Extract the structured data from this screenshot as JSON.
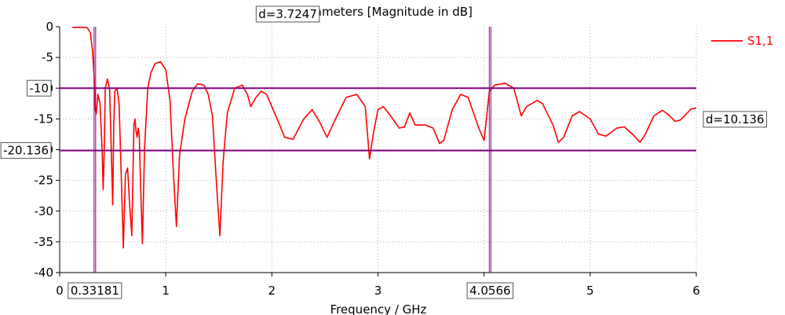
{
  "chart_data": {
    "type": "line",
    "title": "S-Parameters [Magnitude in dB]",
    "xlabel": "Frequency / GHz",
    "ylabel": "",
    "xlim": [
      0,
      6
    ],
    "ylim": [
      -40,
      0
    ],
    "xticks": [
      "0",
      "1",
      "2",
      "3",
      "4",
      "5",
      "6"
    ],
    "yticks": [
      "0",
      "-5",
      "-10",
      "-15",
      "-20",
      "-25",
      "-30",
      "-35",
      "-40"
    ],
    "grid": true,
    "legend_position": "top-right",
    "series": [
      {
        "name": "S1,1",
        "color": "#ff0000",
        "points": [
          [
            0.12,
            -0.1
          ],
          [
            0.2,
            -0.1
          ],
          [
            0.26,
            -0.15
          ],
          [
            0.29,
            -1.0
          ],
          [
            0.31,
            -4.0
          ],
          [
            0.325,
            -8.0
          ],
          [
            0.335,
            -13.5
          ],
          [
            0.345,
            -14.2
          ],
          [
            0.36,
            -11.0
          ],
          [
            0.38,
            -12.5
          ],
          [
            0.4,
            -20.0
          ],
          [
            0.41,
            -26.5
          ],
          [
            0.42,
            -20.0
          ],
          [
            0.43,
            -10.0
          ],
          [
            0.45,
            -8.5
          ],
          [
            0.47,
            -10.0
          ],
          [
            0.48,
            -16.0
          ],
          [
            0.5,
            -29.0
          ],
          [
            0.51,
            -16.0
          ],
          [
            0.52,
            -10.5
          ],
          [
            0.54,
            -10.0
          ],
          [
            0.56,
            -12.5
          ],
          [
            0.58,
            -24.0
          ],
          [
            0.6,
            -36.0
          ],
          [
            0.62,
            -24.0
          ],
          [
            0.64,
            -23.0
          ],
          [
            0.66,
            -29.0
          ],
          [
            0.68,
            -34.0
          ],
          [
            0.7,
            -16.0
          ],
          [
            0.71,
            -15.0
          ],
          [
            0.72,
            -17.0
          ],
          [
            0.73,
            -18.0
          ],
          [
            0.74,
            -16.5
          ],
          [
            0.75,
            -17.5
          ],
          [
            0.76,
            -24.0
          ],
          [
            0.78,
            -35.3
          ],
          [
            0.8,
            -20.0
          ],
          [
            0.83,
            -10.0
          ],
          [
            0.86,
            -7.5
          ],
          [
            0.9,
            -6.0
          ],
          [
            0.95,
            -5.7
          ],
          [
            1.0,
            -7.0
          ],
          [
            1.04,
            -12.0
          ],
          [
            1.07,
            -23.0
          ],
          [
            1.1,
            -32.5
          ],
          [
            1.13,
            -21.0
          ],
          [
            1.18,
            -15.0
          ],
          [
            1.25,
            -10.5
          ],
          [
            1.3,
            -9.3
          ],
          [
            1.36,
            -9.5
          ],
          [
            1.4,
            -11.0
          ],
          [
            1.44,
            -14.5
          ],
          [
            1.48,
            -26.0
          ],
          [
            1.51,
            -34.0
          ],
          [
            1.54,
            -22.0
          ],
          [
            1.58,
            -14.0
          ],
          [
            1.65,
            -10.0
          ],
          [
            1.72,
            -9.5
          ],
          [
            1.77,
            -11.0
          ],
          [
            1.8,
            -13.0
          ],
          [
            1.85,
            -11.5
          ],
          [
            1.9,
            -10.5
          ],
          [
            1.95,
            -11.0
          ],
          [
            2.05,
            -15.0
          ],
          [
            2.12,
            -18.0
          ],
          [
            2.2,
            -18.3
          ],
          [
            2.3,
            -15.0
          ],
          [
            2.38,
            -13.5
          ],
          [
            2.45,
            -15.5
          ],
          [
            2.52,
            -18.0
          ],
          [
            2.6,
            -15.0
          ],
          [
            2.7,
            -11.5
          ],
          [
            2.8,
            -11.0
          ],
          [
            2.88,
            -13.0
          ],
          [
            2.92,
            -21.5
          ],
          [
            2.96,
            -17.0
          ],
          [
            3.0,
            -13.5
          ],
          [
            3.05,
            -13.0
          ],
          [
            3.12,
            -14.5
          ],
          [
            3.2,
            -16.5
          ],
          [
            3.25,
            -16.3
          ],
          [
            3.3,
            -14.0
          ],
          [
            3.35,
            -16.0
          ],
          [
            3.45,
            -16.0
          ],
          [
            3.52,
            -16.5
          ],
          [
            3.58,
            -19.0
          ],
          [
            3.62,
            -18.5
          ],
          [
            3.7,
            -13.5
          ],
          [
            3.78,
            -11.0
          ],
          [
            3.85,
            -11.5
          ],
          [
            3.95,
            -16.5
          ],
          [
            4.0,
            -18.5
          ],
          [
            4.05,
            -10.5
          ],
          [
            4.1,
            -9.5
          ],
          [
            4.2,
            -9.2
          ],
          [
            4.28,
            -10.0
          ],
          [
            4.35,
            -14.5
          ],
          [
            4.4,
            -13.0
          ],
          [
            4.5,
            -12.0
          ],
          [
            4.55,
            -12.5
          ],
          [
            4.65,
            -16.0
          ],
          [
            4.7,
            -18.8
          ],
          [
            4.75,
            -18.0
          ],
          [
            4.83,
            -14.5
          ],
          [
            4.9,
            -13.8
          ],
          [
            5.0,
            -15.0
          ],
          [
            5.08,
            -17.5
          ],
          [
            5.15,
            -17.8
          ],
          [
            5.25,
            -16.5
          ],
          [
            5.32,
            -16.3
          ],
          [
            5.4,
            -17.5
          ],
          [
            5.47,
            -18.8
          ],
          [
            5.52,
            -17.5
          ],
          [
            5.6,
            -14.5
          ],
          [
            5.68,
            -13.6
          ],
          [
            5.73,
            -14.2
          ],
          [
            5.8,
            -15.4
          ],
          [
            5.85,
            -15.2
          ],
          [
            5.95,
            -13.4
          ],
          [
            6.0,
            -13.2
          ]
        ]
      }
    ],
    "markers": {
      "vertical": [
        {
          "value": 0.33181,
          "label": "0.33181"
        },
        {
          "value": 4.0566,
          "label": "4.0566"
        }
      ],
      "vertical_delta_label": "d=3.7247",
      "horizontal": [
        {
          "value": -10,
          "label": "-10"
        },
        {
          "value": -20.136,
          "label": "-20.136"
        }
      ],
      "horizontal_delta_label": "d=10.136",
      "color": "#800080"
    }
  }
}
